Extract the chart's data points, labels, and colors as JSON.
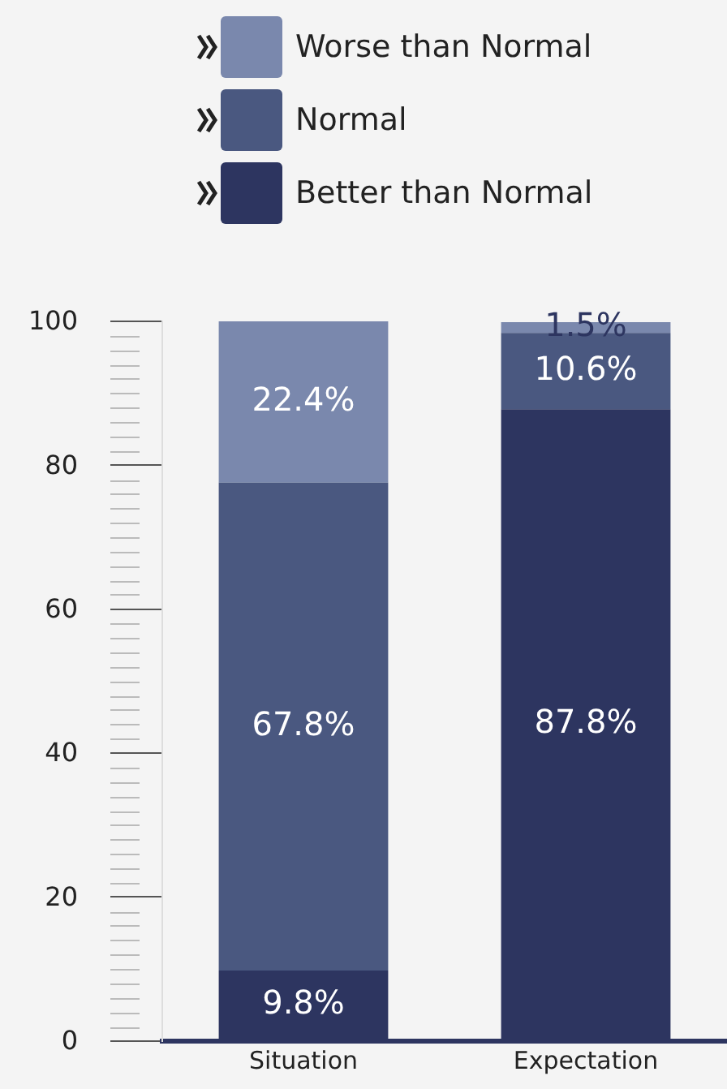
{
  "chart_data": {
    "type": "bar",
    "stacked": true,
    "categories": [
      "Situation",
      "Expectation"
    ],
    "series": [
      {
        "name": "Better than Normal",
        "color": "#2d3560",
        "values": [
          9.8,
          87.8
        ],
        "value_labels": [
          "9.8%",
          "87.8%"
        ]
      },
      {
        "name": "Normal",
        "color": "#4a5880",
        "values": [
          67.8,
          10.6
        ],
        "value_labels": [
          "67.8%",
          "10.6%"
        ]
      },
      {
        "name": "Worse than Normal",
        "color": "#7a88ad",
        "values": [
          22.4,
          1.5
        ],
        "value_labels": [
          "22.4%",
          "1.5%"
        ]
      }
    ],
    "ylim": [
      0,
      100
    ],
    "yticks": [
      0,
      20,
      40,
      60,
      80,
      100
    ],
    "grid": false,
    "legend": "top"
  }
}
